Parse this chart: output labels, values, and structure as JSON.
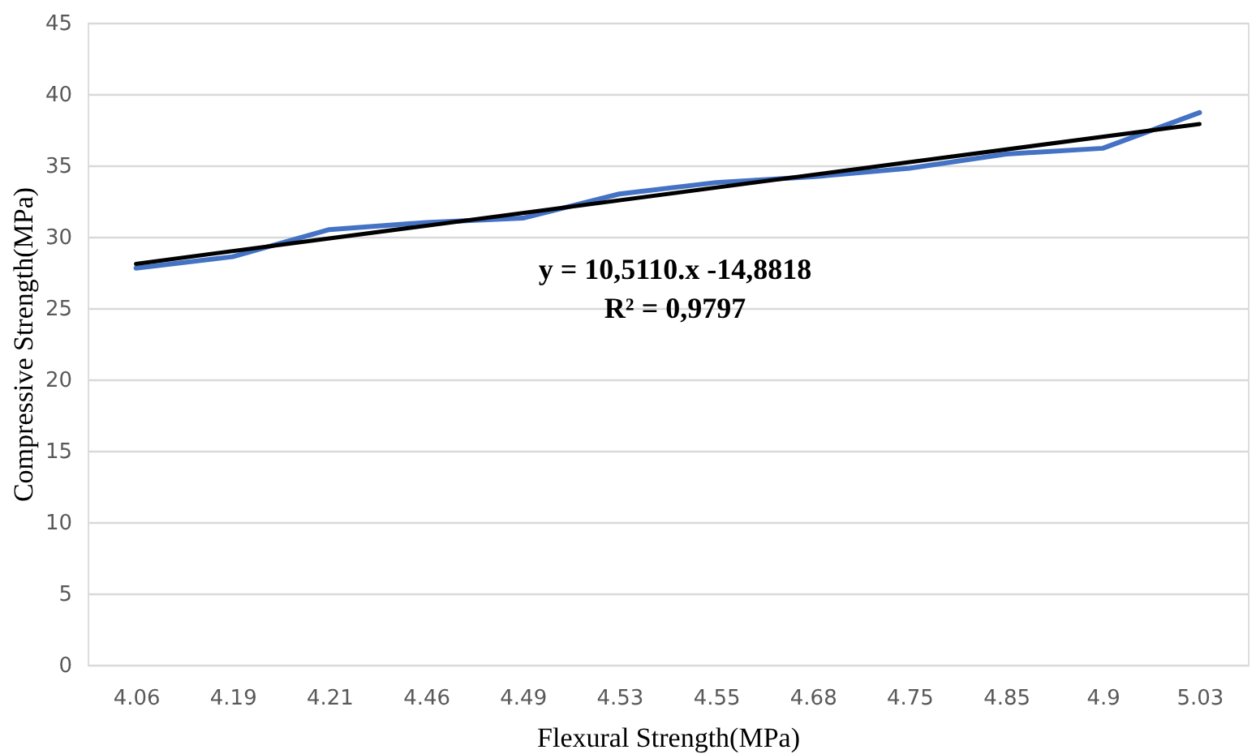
{
  "chart_data": {
    "type": "line",
    "xlabel": "Flexural Strength(MPa)",
    "ylabel": "Compressive Strength(MPa)",
    "categories": [
      "4.06",
      "4.19",
      "4.21",
      "4.46",
      "4.49",
      "4.53",
      "4.55",
      "4.68",
      "4.75",
      "4.85",
      "4.9",
      "5.03"
    ],
    "series": [
      {
        "color": "#4472c4",
        "values": [
          27.8,
          28.6,
          30.5,
          31.0,
          31.3,
          33.0,
          33.8,
          34.2,
          34.8,
          35.8,
          36.2,
          38.7
        ]
      },
      {
        "type": "line",
        "color": "#000000",
        "x": [
          "4.06",
          "5.03"
        ],
        "values": [
          28.1,
          37.9
        ]
      }
    ],
    "annotations": [
      "y = 10,5110.x -14,8818",
      "R² = 0,9797"
    ],
    "ylim": [
      0,
      45
    ],
    "yticks": [
      0,
      5,
      10,
      15,
      20,
      25,
      30,
      35,
      40,
      45
    ],
    "grid": "y",
    "marker": "none",
    "line_style": "solid"
  }
}
